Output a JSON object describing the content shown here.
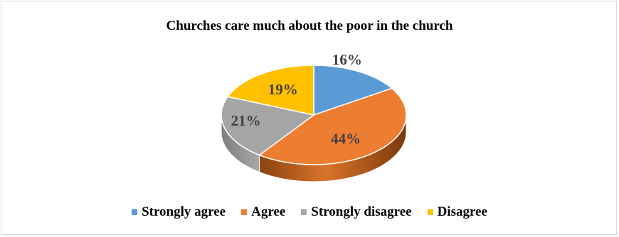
{
  "chart_data": {
    "type": "pie",
    "title": "Churches care much about the poor in the church",
    "categories": [
      "Strongly agree",
      "Agree",
      "Strongly disagree",
      "Disagree"
    ],
    "values": [
      16,
      44,
      21,
      19
    ],
    "labels": [
      "16%",
      "44%",
      "21%",
      "19%"
    ],
    "colors": [
      "#5b9bd5",
      "#ed7d31",
      "#a5a5a5",
      "#ffc000"
    ],
    "style": "3d",
    "legend": "bottom"
  }
}
